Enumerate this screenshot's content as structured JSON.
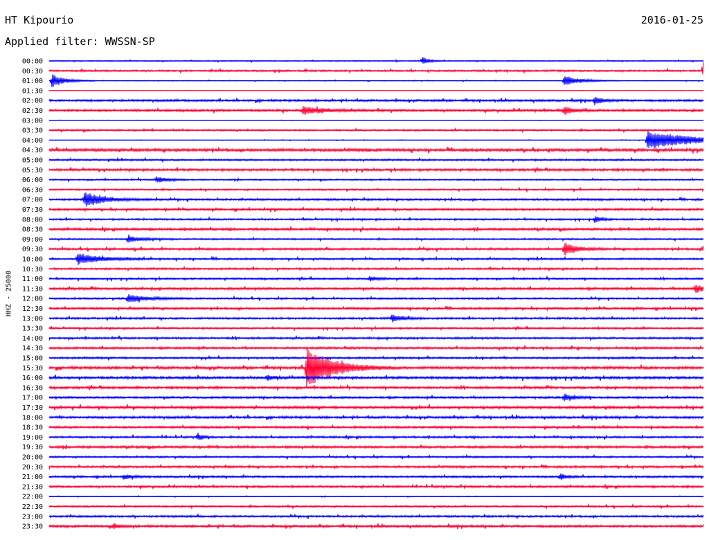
{
  "header": {
    "station": "HT Kipourio",
    "date": "2016-01-25",
    "filter_text": "Applied filter: WWSSN-SP",
    "channel": "HHZ - 25000"
  },
  "colors": {
    "even_hour": "#0000ff",
    "half_hour": "#ff0033",
    "background": "#ffffff"
  },
  "chart_data": {
    "type": "line",
    "title": "HT Kipourio",
    "ylabel": "HHZ - 25000",
    "row_labels": [
      "00:00",
      "00:30",
      "01:00",
      "01:30",
      "02:00",
      "02:30",
      "03:00",
      "03:30",
      "04:00",
      "04:30",
      "05:00",
      "05:30",
      "06:00",
      "06:30",
      "07:00",
      "07:30",
      "08:00",
      "08:30",
      "09:00",
      "09:30",
      "10:00",
      "10:30",
      "11:00",
      "11:30",
      "12:00",
      "12:30",
      "13:00",
      "13:30",
      "14:00",
      "14:30",
      "15:00",
      "15:30",
      "16:00",
      "16:30",
      "17:00",
      "17:30",
      "18:00",
      "18:30",
      "19:00",
      "19:30",
      "20:00",
      "20:30",
      "21:00",
      "21:30",
      "22:00",
      "22:30",
      "23:00",
      "23:30"
    ],
    "row_duration_minutes": 30,
    "noise_level": [
      0.6,
      1.0,
      0.4,
      0.2,
      1.2,
      1.3,
      0.2,
      1.0,
      0.3,
      1.6,
      1.0,
      1.3,
      0.8,
      0.9,
      1.1,
      1.2,
      1.0,
      1.3,
      0.9,
      1.2,
      1.0,
      1.1,
      1.0,
      1.3,
      1.0,
      1.2,
      1.1,
      1.0,
      1.1,
      1.2,
      1.1,
      1.5,
      1.4,
      1.3,
      1.2,
      1.4,
      1.3,
      1.2,
      1.1,
      1.3,
      1.0,
      1.2,
      1.1,
      1.2,
      0.4,
      1.0,
      1.1,
      1.3
    ],
    "events": [
      {
        "row": 0,
        "minute": 17.1,
        "amplitude": 6,
        "duration": 0.4
      },
      {
        "row": 1,
        "minute": 30.0,
        "amplitude": 16,
        "duration": 0.6
      },
      {
        "row": 2,
        "minute": 0.1,
        "amplitude": 10,
        "duration": 0.8
      },
      {
        "row": 2,
        "minute": 23.6,
        "amplitude": 8,
        "duration": 1.0
      },
      {
        "row": 4,
        "minute": 25.0,
        "amplitude": 6,
        "duration": 0.5
      },
      {
        "row": 5,
        "minute": 11.6,
        "amplitude": 6,
        "duration": 1.2
      },
      {
        "row": 5,
        "minute": 23.6,
        "amplitude": 7,
        "duration": 0.5
      },
      {
        "row": 8,
        "minute": 27.4,
        "amplitude": 14,
        "duration": 3.0
      },
      {
        "row": 12,
        "minute": 4.9,
        "amplitude": 5,
        "duration": 0.6
      },
      {
        "row": 14,
        "minute": 1.6,
        "amplitude": 11,
        "duration": 1.2
      },
      {
        "row": 16,
        "minute": 25.0,
        "amplitude": 5,
        "duration": 0.4
      },
      {
        "row": 18,
        "minute": 3.6,
        "amplitude": 5,
        "duration": 0.8
      },
      {
        "row": 19,
        "minute": 23.6,
        "amplitude": 9,
        "duration": 0.8
      },
      {
        "row": 19,
        "minute": 30.0,
        "amplitude": 5,
        "duration": 0.6
      },
      {
        "row": 20,
        "minute": 1.3,
        "amplitude": 8,
        "duration": 1.4
      },
      {
        "row": 22,
        "minute": 14.7,
        "amplitude": 4,
        "duration": 0.4
      },
      {
        "row": 23,
        "minute": 29.6,
        "amplitude": 6,
        "duration": 0.6
      },
      {
        "row": 24,
        "minute": 3.6,
        "amplitude": 6,
        "duration": 1.2
      },
      {
        "row": 26,
        "minute": 15.7,
        "amplitude": 5,
        "duration": 0.6
      },
      {
        "row": 31,
        "minute": 11.8,
        "amplitude": 30,
        "duration": 1.6
      },
      {
        "row": 32,
        "minute": 10.0,
        "amplitude": 4,
        "duration": 0.4
      },
      {
        "row": 34,
        "minute": 23.6,
        "amplitude": 5,
        "duration": 0.6
      },
      {
        "row": 38,
        "minute": 6.8,
        "amplitude": 6,
        "duration": 0.3
      },
      {
        "row": 42,
        "minute": 3.4,
        "amplitude": 4,
        "duration": 0.5
      },
      {
        "row": 42,
        "minute": 23.4,
        "amplitude": 5,
        "duration": 0.4
      },
      {
        "row": 47,
        "minute": 2.9,
        "amplitude": 4,
        "duration": 0.5
      }
    ]
  }
}
